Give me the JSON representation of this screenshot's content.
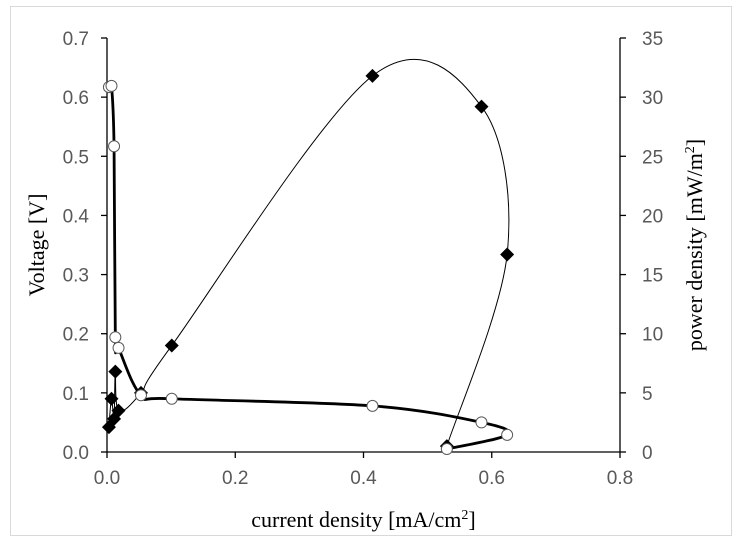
{
  "chart_data": {
    "type": "scatter",
    "xlabel": "current density [mA/cm²]",
    "xlabel_parts": [
      "current density [mA/cm",
      "2",
      "]"
    ],
    "ylabel_left": "Voltage [V]",
    "ylabel_right": "power density [mW/m²]",
    "ylabel_right_parts": [
      "power density [mW/m",
      "2",
      "]"
    ],
    "xlim": [
      0,
      0.8
    ],
    "ylim_left": [
      0,
      0.7
    ],
    "ylim_right": [
      0,
      35
    ],
    "x_ticks": [
      "0.0",
      "0.2",
      "0.4",
      "0.6",
      "0.8"
    ],
    "y_left_ticks": [
      "0.0",
      "0.1",
      "0.2",
      "0.3",
      "0.4",
      "0.5",
      "0.6",
      "0.7"
    ],
    "y_right_ticks": [
      "0",
      "5",
      "10",
      "15",
      "20",
      "25",
      "30",
      "35"
    ],
    "grid": false,
    "legend": "none",
    "series": [
      {
        "axis": "left",
        "marker": "open-circle",
        "line": "thick smooth",
        "color": "#000000",
        "points": [
          [
            0.003,
            0.617
          ],
          [
            0.007,
            0.619
          ],
          [
            0.011,
            0.517
          ],
          [
            0.013,
            0.194
          ],
          [
            0.018,
            0.176
          ],
          [
            0.053,
            0.096
          ],
          [
            0.101,
            0.09
          ],
          [
            0.414,
            0.078
          ],
          [
            0.584,
            0.05
          ],
          [
            0.624,
            0.029
          ],
          [
            0.53,
            0.005
          ]
        ]
      },
      {
        "axis": "right",
        "marker": "filled-diamond",
        "line": "thin smooth",
        "color": "#000000",
        "points": [
          [
            0.003,
            2.1
          ],
          [
            0.007,
            4.5
          ],
          [
            0.011,
            2.8
          ],
          [
            0.013,
            6.8
          ],
          [
            0.018,
            3.5
          ],
          [
            0.053,
            5.0
          ],
          [
            0.101,
            9.0
          ],
          [
            0.414,
            31.8
          ],
          [
            0.584,
            29.2
          ],
          [
            0.624,
            16.7
          ],
          [
            0.53,
            0.5
          ]
        ]
      }
    ]
  }
}
